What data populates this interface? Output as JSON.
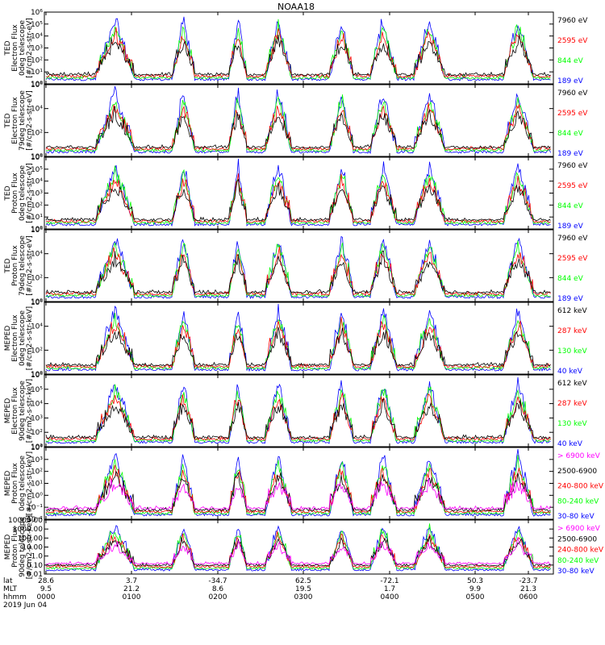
{
  "title": "NOAA18",
  "colors": {
    "blue": "#0000ff",
    "red": "#ff0000",
    "green": "#00ff00",
    "black": "#000000",
    "magenta": "#ff00ff"
  },
  "panels": [
    {
      "instrument": "TED",
      "ylabel_lines": [
        "Electron Flux",
        "0deg telescope",
        "[#/cm2-s-str-eV]"
      ],
      "yticks": [
        "10⁰",
        "10¹",
        "10²",
        "10³",
        "10⁴",
        "10⁵",
        "10⁶"
      ],
      "channels": [
        "7960 eV",
        "2595 eV",
        "844 eV",
        "189 eV"
      ],
      "channel_colors": [
        "#000000",
        "#ff0000",
        "#00ff00",
        "#0000ff"
      ]
    },
    {
      "instrument": "TED",
      "ylabel_lines": [
        "Electron Flux",
        "79deg telescope",
        "[#/cm2-s-str-eV]"
      ],
      "yticks": [
        "10⁰",
        "10²",
        "10⁴",
        "10⁶"
      ],
      "channels": [
        "7960 eV",
        "2595 eV",
        "844 eV",
        "189 eV"
      ],
      "channel_colors": [
        "#000000",
        "#ff0000",
        "#00ff00",
        "#0000ff"
      ]
    },
    {
      "instrument": "TED",
      "ylabel_lines": [
        "Proton Flux",
        "0deg telescope",
        "[#/cm2-s-str-eV]"
      ],
      "yticks": [
        "10⁰",
        "10¹",
        "10²",
        "10³",
        "10⁴",
        "10⁵",
        "10⁶"
      ],
      "channels": [
        "7960 eV",
        "2595 eV",
        "844 eV",
        "189 eV"
      ],
      "channel_colors": [
        "#000000",
        "#ff0000",
        "#00ff00",
        "#0000ff"
      ]
    },
    {
      "instrument": "TED",
      "ylabel_lines": [
        "Proton Flux",
        "79deg telescope",
        "[#/cm2-s-str-eV]"
      ],
      "yticks": [
        "10⁰",
        "10²",
        "10⁴",
        "10⁶"
      ],
      "channels": [
        "7960 eV",
        "2595 eV",
        "844 eV",
        "189 eV"
      ],
      "channel_colors": [
        "#000000",
        "#ff0000",
        "#00ff00",
        "#0000ff"
      ]
    },
    {
      "instrument": "MEPED",
      "ylabel_lines": [
        "Electron Flux",
        "0deg telescope",
        "[#/cm2-s-str-keV]"
      ],
      "yticks": [
        "10⁰",
        "10²",
        "10⁴",
        "10⁶"
      ],
      "channels": [
        "612 keV",
        "287 keV",
        "130 keV",
        "40 keV"
      ],
      "channel_colors": [
        "#000000",
        "#ff0000",
        "#00ff00",
        "#0000ff"
      ]
    },
    {
      "instrument": "MEPED",
      "ylabel_lines": [
        "Electron Flux",
        "90deg telescope",
        "[#/cm2-s-str-keV]"
      ],
      "yticks": [
        "10⁰",
        "10²",
        "10³",
        "10⁴",
        "10⁵",
        "10⁶"
      ],
      "channels": [
        "612 keV",
        "287 keV",
        "130 keV",
        "40 keV"
      ],
      "channel_colors": [
        "#000000",
        "#ff0000",
        "#00ff00",
        "#0000ff"
      ]
    },
    {
      "instrument": "MEPED",
      "ylabel_lines": [
        "Proton Flux",
        "0deg telescope",
        "[#/cm2-s-str-keV]"
      ],
      "yticks": [
        "10⁻²",
        "10⁻¹",
        "10⁰",
        "10¹",
        "10²",
        "10³",
        "10⁴"
      ],
      "channels": [
        "> 6900 keV",
        "2500-6900",
        "240-800 keV",
        "80-240 keV",
        "30-80 keV"
      ],
      "channel_colors": [
        "#ff00ff",
        "#000000",
        "#ff0000",
        "#00ff00",
        "#0000ff"
      ]
    },
    {
      "instrument": "MEPED",
      "ylabel_lines": [
        "Proton Flux",
        "90deg telescope",
        "[#/cm2-s-str-keV]"
      ],
      "yticks": [
        "0.01",
        "0.10",
        "1.0",
        "10.00",
        "100.00",
        "1000.00",
        "10000.00"
      ],
      "channels": [
        "> 6900 keV",
        "2500-6900",
        "240-800 keV",
        "80-240 keV",
        "30-80 keV"
      ],
      "channel_colors": [
        "#ff00ff",
        "#000000",
        "#ff0000",
        "#00ff00",
        "#0000ff"
      ]
    }
  ],
  "xaxis": {
    "row_labels": [
      "lat",
      "MLT",
      "hhmm",
      "2019 Jun 04"
    ],
    "ticks": [
      {
        "lat": "28.6",
        "mlt": "9.5",
        "hhmm": "0000"
      },
      {
        "lat": "3.7",
        "mlt": "21.2",
        "hhmm": "0100"
      },
      {
        "lat": "-34.7",
        "mlt": "8.6",
        "hhmm": "0200"
      },
      {
        "lat": "62.5",
        "mlt": "19.5",
        "hhmm": "0300"
      },
      {
        "lat": "-72.1",
        "mlt": "1.7",
        "hhmm": "0400"
      },
      {
        "lat": "50.3",
        "mlt": "9.9",
        "hhmm": "0500"
      },
      {
        "lat": "-23.7",
        "mlt": "21.3",
        "hhmm": "0600"
      }
    ]
  },
  "chart_data": [
    {
      "type": "line",
      "title": "NOAA18",
      "panel": 1,
      "ylabel": "TED Electron Flux 0deg telescope [#/cm2-s-str-eV]",
      "yscale": "log",
      "ylim_exp": [
        0,
        6
      ],
      "series": [
        {
          "name": "7960 eV"
        },
        {
          "name": "2595 eV"
        },
        {
          "name": "844 eV"
        },
        {
          "name": "189 eV"
        }
      ],
      "x_ticks": [
        "0000",
        "0100",
        "0200",
        "0300",
        "0400",
        "0500",
        "0600"
      ]
    },
    {
      "type": "line",
      "panel": 2,
      "ylabel": "TED Electron Flux 79deg telescope [#/cm2-s-str-eV]",
      "yscale": "log",
      "ylim_exp": [
        0,
        6
      ],
      "series": [
        {
          "name": "7960 eV"
        },
        {
          "name": "2595 eV"
        },
        {
          "name": "844 eV"
        },
        {
          "name": "189 eV"
        }
      ]
    },
    {
      "type": "line",
      "panel": 3,
      "ylabel": "TED Proton Flux 0deg telescope [#/cm2-s-str-eV]",
      "yscale": "log",
      "ylim_exp": [
        0,
        6
      ],
      "series": [
        {
          "name": "7960 eV"
        },
        {
          "name": "2595 eV"
        },
        {
          "name": "844 eV"
        },
        {
          "name": "189 eV"
        }
      ]
    },
    {
      "type": "line",
      "panel": 4,
      "ylabel": "TED Proton Flux 79deg telescope [#/cm2-s-str-eV]",
      "yscale": "log",
      "ylim_exp": [
        0,
        6
      ],
      "series": [
        {
          "name": "7960 eV"
        },
        {
          "name": "2595 eV"
        },
        {
          "name": "844 eV"
        },
        {
          "name": "189 eV"
        }
      ]
    },
    {
      "type": "line",
      "panel": 5,
      "ylabel": "MEPED Electron Flux 0deg telescope [#/cm2-s-str-keV]",
      "yscale": "log",
      "ylim_exp": [
        0,
        6
      ],
      "series": [
        {
          "name": "612 keV"
        },
        {
          "name": "287 keV"
        },
        {
          "name": "130 keV"
        },
        {
          "name": "40 keV"
        }
      ]
    },
    {
      "type": "line",
      "panel": 6,
      "ylabel": "MEPED Electron Flux 90deg telescope [#/cm2-s-str-keV]",
      "yscale": "log",
      "ylim_exp": [
        0,
        6
      ],
      "series": [
        {
          "name": "612 keV"
        },
        {
          "name": "287 keV"
        },
        {
          "name": "130 keV"
        },
        {
          "name": "40 keV"
        }
      ]
    },
    {
      "type": "line",
      "panel": 7,
      "ylabel": "MEPED Proton Flux 0deg telescope [#/cm2-s-str-keV]",
      "yscale": "log",
      "ylim_exp": [
        -2,
        4
      ],
      "series": [
        {
          "name": "> 6900 keV"
        },
        {
          "name": "2500-6900"
        },
        {
          "name": "240-800 keV"
        },
        {
          "name": "80-240 keV"
        },
        {
          "name": "30-80 keV"
        }
      ]
    },
    {
      "type": "line",
      "panel": 8,
      "ylabel": "MEPED Proton Flux 90deg telescope [#/cm2-s-str-keV]",
      "yscale": "log",
      "ylim_exp": [
        -2,
        4
      ],
      "series": [
        {
          "name": "> 6900 keV"
        },
        {
          "name": "2500-6900"
        },
        {
          "name": "240-800 keV"
        },
        {
          "name": "80-240 keV"
        },
        {
          "name": "30-80 keV"
        }
      ]
    }
  ]
}
